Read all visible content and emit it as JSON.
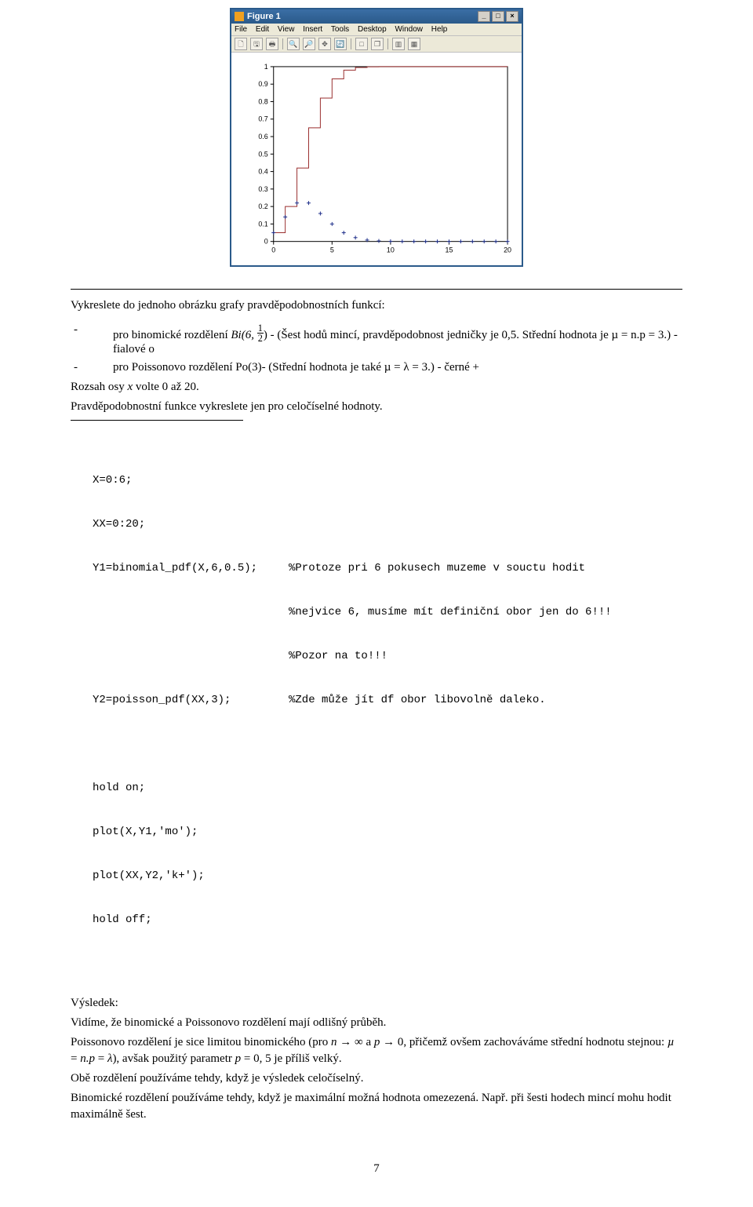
{
  "figure": {
    "window_title": "Figure 1",
    "menu_items": [
      "File",
      "Edit",
      "View",
      "Insert",
      "Tools",
      "Desktop",
      "Window",
      "Help"
    ],
    "toolbar_glyphs": [
      "🗋",
      "🖫",
      "🖶",
      "🔍",
      "🔎",
      "✥",
      "🔄",
      "□",
      "❐",
      "▥",
      "▦"
    ],
    "chart": {
      "type": "step-line + scatter",
      "xlim": [
        0,
        20
      ],
      "ylim": [
        0,
        1
      ],
      "xticks": [
        0,
        5,
        10,
        15,
        20
      ],
      "yticks": [
        0,
        0.1,
        0.2,
        0.3,
        0.4,
        0.5,
        0.6,
        0.7,
        0.8,
        0.9,
        1
      ],
      "step_color": "#9a2f2f",
      "step_linewidth": 1,
      "step_x": [
        0,
        1,
        1,
        2,
        2,
        3,
        3,
        4,
        4,
        5,
        5,
        6,
        6,
        7,
        7,
        8,
        8,
        9,
        9,
        10,
        10,
        11,
        11,
        20
      ],
      "step_y": [
        0.05,
        0.05,
        0.2,
        0.2,
        0.42,
        0.42,
        0.65,
        0.65,
        0.82,
        0.82,
        0.93,
        0.93,
        0.98,
        0.98,
        0.995,
        0.995,
        0.999,
        0.999,
        1.0,
        1.0,
        1.0,
        1.0,
        1.0,
        1.0
      ],
      "scatter_color": "#1f2f8a",
      "scatter_marker": "+",
      "scatter_marker_size": 5,
      "scatter_x": [
        0,
        1,
        2,
        3,
        4,
        5,
        6,
        7,
        8,
        9,
        10,
        11,
        12,
        13,
        14,
        15,
        16,
        17,
        18,
        19,
        20
      ],
      "scatter_y": [
        0.05,
        0.14,
        0.22,
        0.22,
        0.16,
        0.1,
        0.05,
        0.022,
        0.008,
        0.003,
        0.001,
        0.0003,
        0.0001,
        2e-05,
        4e-06,
        1e-06,
        0,
        0,
        0,
        0,
        0
      ],
      "axis_color": "#000000",
      "grid": false,
      "background_color": "#ffffff",
      "tick_fontsize": 9
    }
  },
  "task": {
    "intro": "Vykreslete do jednoho obrázku grafy pravděpodobnostních funkcí:",
    "bullet1_prefix": "pro binomické rozdělení ",
    "bullet1_dist": "Bi(6, ",
    "bullet1_frac_num": "1",
    "bullet1_frac_den": "2",
    "bullet1_after": ") - (Šest hodů mincí, pravděpodobnost jedničky je 0,5. Střední hodnota je µ = n.p = 3.) - fialové o",
    "bullet2": "pro Poissonovo rozdělení Po(3)- (Střední hodnota je také µ = λ = 3.) - černé +",
    "line3": "Rozsah osy x volte 0 až 20.",
    "line4": "Pravděpodobnostní funkce vykreslete jen pro celočíselné hodnoty."
  },
  "code": {
    "l1": "X=0:6;",
    "l2": "XX=0:20;",
    "l3_left": "Y1=binomial_pdf(X,6,0.5);",
    "l3_right": "%Protoze pri 6 pokusech muzeme v souctu hodit",
    "l3b": "%nejvice 6, musíme mít definiční obor jen do 6!!!",
    "l3c": "%Pozor na to!!!",
    "l4_left": "Y2=poisson_pdf(XX,3);",
    "l4_right": "%Zde může jít df obor libovolně daleko.",
    "l5": "hold on;",
    "l6": "plot(X,Y1,'mo');",
    "l7": "plot(XX,Y2,'k+');",
    "l8": "hold off;"
  },
  "result": {
    "head": "Výsledek:",
    "p1": "Vidíme, že binomické a Poissonovo rozdělení mají odlišný průběh.",
    "p2": "Poissonovo rozdělení je sice limitou binomického (pro n → ∞ a p → 0, přičemž ovšem zachováváme střední hodnotu stejnou: µ = n.p = λ), avšak použitý parametr p = 0, 5 je příliš velký.",
    "p3": "Obě rozdělení používáme tehdy, když je výsledek celočíselný.",
    "p4": "Binomické rozdělení používáme tehdy, když je maximální možná hodnota omezezená. Např. při šesti hodech mincí mohu hodit maximálně šest."
  },
  "page_number": "7"
}
